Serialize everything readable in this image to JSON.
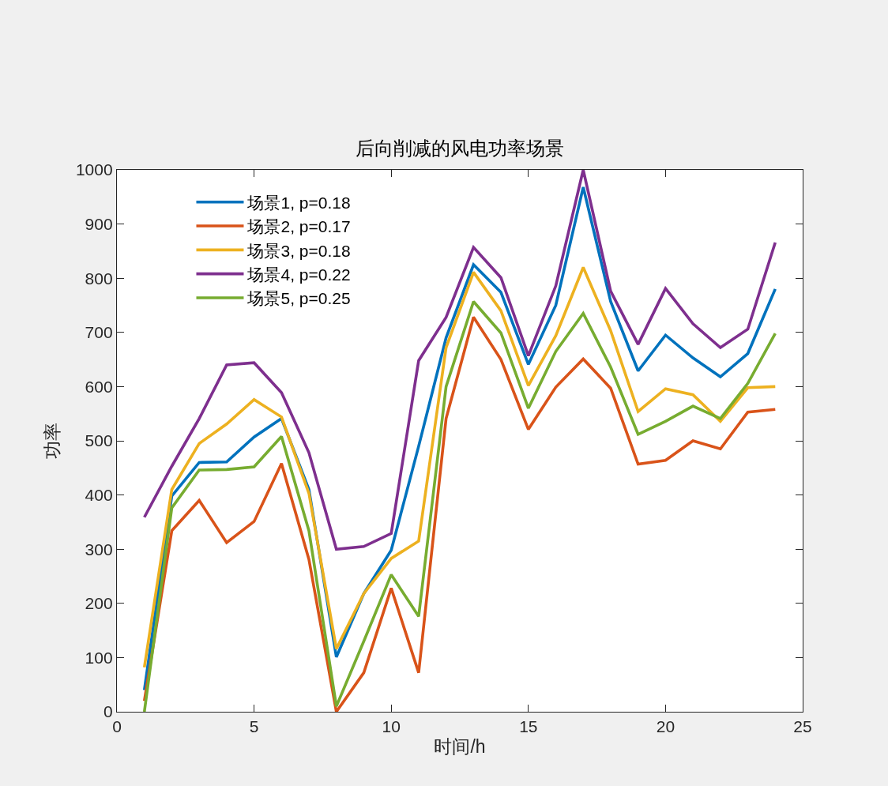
{
  "chart_data": {
    "type": "line",
    "title": "后向削减的风电功率场景",
    "xlabel": "时间/h",
    "ylabel": "功率",
    "x": [
      1,
      2,
      3,
      4,
      5,
      6,
      7,
      8,
      9,
      10,
      11,
      12,
      13,
      14,
      15,
      16,
      17,
      18,
      19,
      20,
      21,
      22,
      23,
      24
    ],
    "series": [
      {
        "name": "场景1, p=0.18",
        "color": "#0072bd",
        "values": [
          40,
          398,
          460,
          461,
          507,
          541,
          410,
          101,
          218,
          298,
          490,
          690,
          825,
          774,
          641,
          750,
          968,
          757,
          629,
          695,
          653,
          618,
          661,
          780
        ]
      },
      {
        "name": "场景2, p=0.17",
        "color": "#d95319",
        "values": [
          20,
          334,
          390,
          312,
          351,
          458,
          281,
          0,
          72,
          228,
          72,
          541,
          728,
          650,
          521,
          599,
          651,
          597,
          457,
          464,
          500,
          485,
          553,
          558
        ]
      },
      {
        "name": "场景3, p=0.18",
        "color": "#edb120",
        "values": [
          82,
          410,
          495,
          531,
          576,
          544,
          403,
          116,
          218,
          283,
          315,
          672,
          811,
          740,
          602,
          694,
          820,
          703,
          554,
          596,
          585,
          536,
          598,
          600
        ]
      },
      {
        "name": "场景4, p=0.22",
        "color": "#7e2f8e",
        "values": [
          359,
          453,
          541,
          640,
          644,
          589,
          478,
          300,
          305,
          329,
          648,
          728,
          857,
          801,
          657,
          786,
          1000,
          776,
          678,
          781,
          716,
          672,
          706,
          866
        ]
      },
      {
        "name": "场景5, p=0.25",
        "color": "#77ac30",
        "values": [
          0,
          376,
          446,
          447,
          452,
          508,
          334,
          10,
          130,
          253,
          176,
          600,
          757,
          699,
          560,
          665,
          735,
          636,
          512,
          536,
          564,
          541,
          606,
          698
        ]
      }
    ],
    "xlim": [
      0,
      25
    ],
    "xticks": [
      0,
      5,
      10,
      15,
      20,
      25
    ],
    "ylim": [
      0,
      1000
    ],
    "yticks": [
      0,
      100,
      200,
      300,
      400,
      500,
      600,
      700,
      800,
      900,
      1000
    ],
    "grid": false,
    "legend": "top left",
    "line_style": "solid"
  }
}
